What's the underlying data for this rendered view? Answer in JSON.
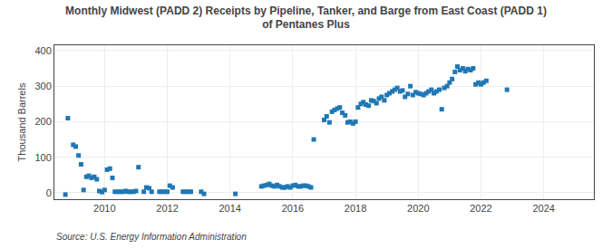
{
  "chart_data": {
    "type": "scatter",
    "title": "Monthly Midwest (PADD 2) Receipts by Pipeline, Tanker, and Barge from East Coast (PADD 1)\nof Pentanes Plus",
    "y_label": "Thousand Barrels",
    "annotations": [
      "Source: U.S. Energy Information Administration"
    ],
    "marker": "square",
    "grid": true,
    "xlim": [
      2008.4,
      2025.6
    ],
    "ylim": [
      -18,
      415
    ],
    "xticks": [
      2010,
      2012,
      2014,
      2016,
      2018,
      2020,
      2022,
      2024
    ],
    "yticks": [
      0,
      100,
      200,
      300,
      400
    ],
    "x": [
      2008.75,
      2008.83,
      2009.0,
      2009.08,
      2009.17,
      2009.25,
      2009.33,
      2009.42,
      2009.5,
      2009.58,
      2009.67,
      2009.75,
      2009.83,
      2009.92,
      2010.0,
      2010.08,
      2010.17,
      2010.25,
      2010.33,
      2010.42,
      2010.5,
      2010.58,
      2010.67,
      2010.75,
      2010.83,
      2010.92,
      2011.0,
      2011.08,
      2011.25,
      2011.33,
      2011.42,
      2011.5,
      2011.75,
      2011.83,
      2011.92,
      2012.0,
      2012.08,
      2012.17,
      2012.5,
      2012.58,
      2012.67,
      2012.75,
      2013.08,
      2013.17,
      2014.17,
      2015.0,
      2015.08,
      2015.17,
      2015.25,
      2015.33,
      2015.42,
      2015.5,
      2015.58,
      2015.67,
      2015.75,
      2015.83,
      2015.92,
      2016.0,
      2016.08,
      2016.17,
      2016.25,
      2016.33,
      2016.42,
      2016.5,
      2016.58,
      2016.67,
      2017.0,
      2017.08,
      2017.17,
      2017.25,
      2017.33,
      2017.42,
      2017.5,
      2017.58,
      2017.67,
      2017.75,
      2017.83,
      2017.92,
      2018.0,
      2018.08,
      2018.17,
      2018.25,
      2018.33,
      2018.42,
      2018.5,
      2018.58,
      2018.67,
      2018.75,
      2018.83,
      2018.92,
      2019.0,
      2019.08,
      2019.17,
      2019.25,
      2019.33,
      2019.42,
      2019.5,
      2019.58,
      2019.67,
      2019.75,
      2019.83,
      2019.92,
      2020.0,
      2020.08,
      2020.17,
      2020.25,
      2020.33,
      2020.42,
      2020.5,
      2020.58,
      2020.67,
      2020.75,
      2020.83,
      2020.92,
      2021.0,
      2021.08,
      2021.17,
      2021.25,
      2021.33,
      2021.42,
      2021.5,
      2021.58,
      2021.67,
      2021.75,
      2021.83,
      2021.92,
      2022.0,
      2022.08,
      2022.17,
      2022.83
    ],
    "values": [
      -5,
      210,
      135,
      130,
      105,
      80,
      8,
      45,
      48,
      42,
      45,
      38,
      5,
      2,
      8,
      65,
      68,
      42,
      3,
      3,
      3,
      3,
      5,
      3,
      3,
      3,
      5,
      72,
      3,
      15,
      13,
      3,
      3,
      3,
      3,
      3,
      20,
      15,
      3,
      3,
      3,
      3,
      3,
      -3,
      -3,
      18,
      20,
      22,
      25,
      20,
      18,
      22,
      18,
      15,
      15,
      18,
      15,
      20,
      22,
      18,
      18,
      20,
      20,
      18,
      15,
      150,
      205,
      215,
      198,
      228,
      233,
      237,
      240,
      225,
      218,
      198,
      200,
      195,
      200,
      240,
      250,
      255,
      248,
      245,
      260,
      258,
      252,
      265,
      270,
      260,
      275,
      280,
      285,
      290,
      295,
      285,
      288,
      270,
      278,
      300,
      275,
      283,
      280,
      278,
      275,
      280,
      285,
      290,
      280,
      285,
      290,
      235,
      295,
      300,
      310,
      320,
      340,
      355,
      345,
      350,
      342,
      348,
      345,
      350,
      305,
      310,
      305,
      310,
      315,
      290
    ]
  }
}
